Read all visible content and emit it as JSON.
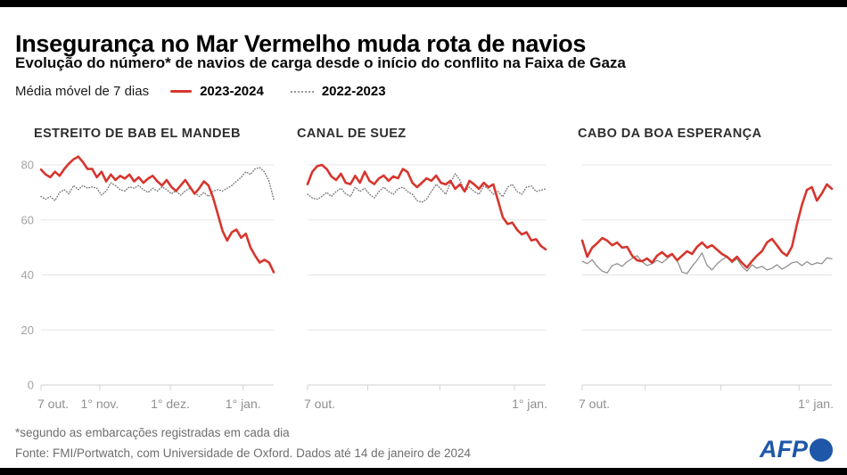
{
  "header": {
    "title": "Insegurança no Mar Vermelho muda rota de navios",
    "subtitle": "Evolução do número* de navios de carga desde o início do conflito na Faixa de Gaza"
  },
  "legend": {
    "label": "Média móvel de 7 dias",
    "series": [
      {
        "name": "2023-2024",
        "color": "#d6362e",
        "style": "solid"
      },
      {
        "name": "2022-2023",
        "color": "#8a8a8a",
        "style": "dotted"
      }
    ]
  },
  "footer": {
    "footnote": "*segundo as embarcações registradas em cada dia",
    "source": "Fonte: FMI/Portwatch, com Universidade de Oxford. Dados até 14 de janeiro de 2024",
    "logo": "AFP",
    "logo_color": "#1e57a7"
  },
  "chart_data": [
    {
      "type": "line",
      "title": "ESTREITO DE BAB EL MANDEB",
      "ylabel": "",
      "ylim": [
        0,
        85
      ],
      "gridlines": [
        0,
        20,
        40,
        60,
        80
      ],
      "show_y_tick_labels": true,
      "x_total_days": 99,
      "x_ticks": [
        {
          "day": 0,
          "label": "7 out."
        },
        {
          "day": 25,
          "label": "1° nov."
        },
        {
          "day": 55,
          "label": "1° dez."
        },
        {
          "day": 86,
          "label": "1° jan."
        }
      ],
      "series": [
        {
          "name": "2023-2024",
          "color": "#d6362e",
          "style": "solid",
          "values": [
            78.3,
            76.5,
            75.5,
            77.5,
            76,
            78.5,
            80.5,
            82,
            83,
            81,
            78.5,
            78.5,
            75.5,
            77.5,
            74,
            76.5,
            74.5,
            76,
            75,
            76.5,
            74,
            75.5,
            73.5,
            75,
            76,
            74,
            72.5,
            74.5,
            72,
            70.5,
            72.5,
            74.5,
            72,
            69.5,
            71.5,
            74,
            72.5,
            68,
            62,
            56,
            52.5,
            55.5,
            56.5,
            53.5,
            55,
            50,
            47,
            44.5,
            45.5,
            44.5,
            41
          ]
        },
        {
          "name": "2022-2023",
          "color": "#777777",
          "style": "dotted",
          "values": [
            68.5,
            67.5,
            68.5,
            67,
            70,
            71,
            69.5,
            72.5,
            71,
            72.5,
            71.5,
            72,
            71.5,
            69,
            70.5,
            73.5,
            72.5,
            71,
            70.5,
            72,
            71.5,
            72.5,
            71,
            70,
            71.5,
            70.5,
            72,
            71,
            69.5,
            70.5,
            69,
            70.5,
            71.5,
            70,
            68.5,
            70,
            68.5,
            70.5,
            71,
            70.5,
            71.5,
            72.5,
            74,
            75.5,
            77.5,
            76.5,
            78.5,
            79,
            77.5,
            74,
            67.5
          ]
        }
      ]
    },
    {
      "type": "line",
      "title": "CANAL DE SUEZ",
      "ylabel": "",
      "ylim": [
        0,
        85
      ],
      "gridlines": [
        0,
        20,
        40,
        60,
        80
      ],
      "show_y_tick_labels": false,
      "x_total_days": 99,
      "x_ticks": [
        {
          "day": 0,
          "label": "7 out."
        },
        {
          "day": 25,
          "label": ""
        },
        {
          "day": 55,
          "label": ""
        },
        {
          "day": 86,
          "label": "1° jan."
        }
      ],
      "series": [
        {
          "name": "2023-2024",
          "color": "#d6362e",
          "style": "solid",
          "values": [
            73,
            77.5,
            79.5,
            80,
            78.5,
            75.8,
            74.5,
            76.8,
            73.5,
            73,
            76,
            73.5,
            77.5,
            74.2,
            73,
            75.1,
            76.1,
            74.2,
            75.8,
            75.1,
            78.5,
            77.4,
            73.5,
            71.9,
            73.5,
            75.1,
            74.2,
            76.1,
            73.5,
            72.9,
            74.2,
            71.3,
            72.9,
            70.3,
            74.2,
            72.9,
            71.3,
            73.5,
            71.9,
            72.9,
            67,
            61,
            58.5,
            59,
            56.4,
            54.7,
            55.5,
            52.5,
            53,
            50.5,
            49.3
          ]
        },
        {
          "name": "2022-2023",
          "color": "#777777",
          "style": "dotted",
          "values": [
            69.3,
            68,
            67.5,
            68.5,
            70,
            68.5,
            70.3,
            71.5,
            69.5,
            68.5,
            71.9,
            70.3,
            71.5,
            69.3,
            68,
            70.3,
            71.9,
            70.3,
            69.3,
            71.3,
            71.9,
            70.3,
            69.3,
            67,
            66.4,
            67.5,
            70.3,
            72.9,
            71.3,
            69.3,
            73.5,
            76.8,
            74.5,
            70.3,
            71.9,
            70.3,
            69.3,
            72.3,
            71.3,
            69.3,
            70.3,
            68.4,
            71.9,
            72.9,
            70.3,
            69.3,
            71.9,
            72.3,
            70.3,
            70.8,
            71.3
          ]
        }
      ]
    },
    {
      "type": "line",
      "title": "CABO DA BOA ESPERANÇA",
      "ylabel": "",
      "ylim": [
        0,
        85
      ],
      "gridlines": [
        0,
        20,
        40,
        60,
        80
      ],
      "show_y_tick_labels": false,
      "x_total_days": 99,
      "x_ticks": [
        {
          "day": 0,
          "label": "7 out."
        },
        {
          "day": 25,
          "label": ""
        },
        {
          "day": 55,
          "label": ""
        },
        {
          "day": 86,
          "label": "1° jan."
        }
      ],
      "series": [
        {
          "name": "2023-2024",
          "color": "#d6362e",
          "style": "solid",
          "values": [
            52.5,
            46.6,
            49.9,
            51.5,
            53.4,
            52.5,
            50.8,
            51.8,
            49.9,
            50.2,
            47,
            45.3,
            45,
            46,
            44.4,
            47,
            48.3,
            46.6,
            47.6,
            45.3,
            47,
            48.6,
            47.6,
            50.2,
            51.8,
            49.9,
            50.8,
            49.2,
            47.6,
            46.6,
            45,
            46.6,
            44.4,
            42.7,
            45,
            47,
            48.6,
            51.8,
            53.1,
            50.8,
            48.3,
            47,
            50.2,
            58.3,
            65.4,
            70.9,
            71.9,
            67,
            69.6,
            72.9,
            71.3
          ]
        },
        {
          "name": "2022-2023",
          "color": "#8a8a8a",
          "style": "solid_thin",
          "values": [
            45,
            44.1,
            45.5,
            43.1,
            41.4,
            40.7,
            43.4,
            44.1,
            43.1,
            44.8,
            46,
            47,
            44.8,
            43.4,
            44.1,
            45.3,
            44.4,
            45.9,
            47.3,
            45.3,
            41,
            40.5,
            43.1,
            45.3,
            48,
            43.5,
            41.8,
            44,
            45.5,
            46.6,
            44.4,
            45.9,
            43.1,
            41.4,
            43.7,
            42.4,
            43.1,
            41.8,
            42.4,
            43.7,
            42.1,
            43.1,
            44.4,
            44.8,
            43.4,
            44.8,
            43.7,
            44.4,
            44.1,
            46.2,
            45.9
          ]
        }
      ]
    }
  ]
}
